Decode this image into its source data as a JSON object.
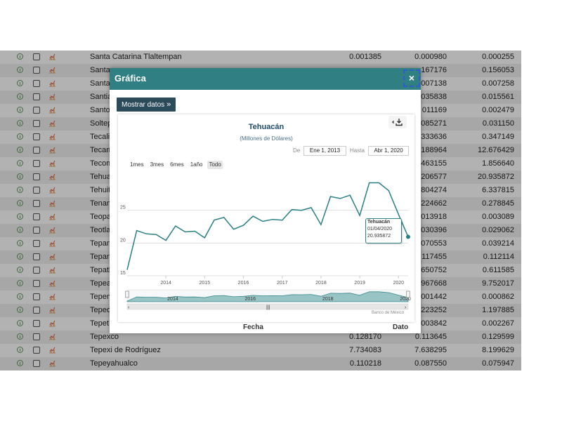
{
  "table": {
    "rows": [
      {
        "name": "Santa Catarina Tlaltempan",
        "v1": "0.001385",
        "v2": "0.000980",
        "v3": "0.000255"
      },
      {
        "name": "Santa",
        "v1": "",
        "v2": "167176",
        "v3": "0.156053"
      },
      {
        "name": "Santa",
        "v1": "",
        "v2": "007138",
        "v3": "0.007258"
      },
      {
        "name": "Santia",
        "v1": "",
        "v2": "035838",
        "v3": "0.015561"
      },
      {
        "name": "Santo",
        "v1": "",
        "v2": "011169",
        "v3": "0.002479"
      },
      {
        "name": "Soltep",
        "v1": "",
        "v2": "085271",
        "v3": "0.031150"
      },
      {
        "name": "Tecali",
        "v1": "",
        "v2": "333636",
        "v3": "0.347149"
      },
      {
        "name": "Tecam",
        "v1": "",
        "v2": "188964",
        "v3": "12.676429"
      },
      {
        "name": "Tecom",
        "v1": "",
        "v2": "463155",
        "v3": "1.856640"
      },
      {
        "name": "Tehua",
        "v1": "",
        "v2": "206577",
        "v3": "20.935872"
      },
      {
        "name": "Tehuit",
        "v1": "",
        "v2": "804274",
        "v3": "6.337815"
      },
      {
        "name": "Tenam",
        "v1": "",
        "v2": "224662",
        "v3": "0.278845"
      },
      {
        "name": "Teopa",
        "v1": "",
        "v2": "013918",
        "v3": "0.003089"
      },
      {
        "name": "Teotla",
        "v1": "",
        "v2": "030396",
        "v3": "0.029062"
      },
      {
        "name": "Tepan",
        "v1": "",
        "v2": "070553",
        "v3": "0.039214"
      },
      {
        "name": "Tepan",
        "v1": "",
        "v2": "117455",
        "v3": "0.112114"
      },
      {
        "name": "Tepatl",
        "v1": "",
        "v2": "650752",
        "v3": "0.611585"
      },
      {
        "name": "Tepea",
        "v1": "",
        "v2": "967668",
        "v3": "9.752017"
      },
      {
        "name": "Tepem",
        "v1": "",
        "v2": "001442",
        "v3": "0.000862"
      },
      {
        "name": "Tepeo",
        "v1": "",
        "v2": "223252",
        "v3": "1.197885"
      },
      {
        "name": "Tepet",
        "v1": "",
        "v2": "003842",
        "v3": "0.002267"
      },
      {
        "name": "Tepexco",
        "v1": "0.128170",
        "v2": "0.113645",
        "v3": "0.129599"
      },
      {
        "name": "Tepexi de Rodríguez",
        "v1": "7.734083",
        "v2": "7.638295",
        "v3": "8.199629"
      },
      {
        "name": "Tepeyahualco",
        "v1": "0.110218",
        "v2": "0.087550",
        "v3": "0.075947"
      }
    ]
  },
  "modal": {
    "title": "Gráfica",
    "close": "×",
    "show_data": "Mostrar datos",
    "show_data_chevron": "»"
  },
  "chart": {
    "range_from_label": "De",
    "range_from": "Ene 1, 2013",
    "range_to_label": "Hasta",
    "range_to": "Abr 1, 2020",
    "zoom_buttons": [
      "1mes",
      "3mes",
      "6mes",
      "1año",
      "Todo"
    ],
    "zoom_active": "Todo",
    "credits": "Banco de México",
    "tooltip": {
      "name": "Tehuacán",
      "date": "01/04/2020",
      "value": "20.935872"
    },
    "series_color": "#2a7f83",
    "below_labels": [
      "Fecha",
      "Dato"
    ]
  },
  "chart_data": {
    "type": "line",
    "title": "Tehuacán",
    "subtitle": "(Millones de Dólares)",
    "x_tick_labels": [
      "2014",
      "2015",
      "2016",
      "2017",
      "2018",
      "2019",
      "2020"
    ],
    "y_tick_labels": [
      "15",
      "20",
      "25"
    ],
    "ylim": [
      15,
      30
    ],
    "x": [
      "2013-01-01",
      "2013-04-01",
      "2013-07-01",
      "2013-10-01",
      "2014-01-01",
      "2014-04-01",
      "2014-07-01",
      "2014-10-01",
      "2015-01-01",
      "2015-04-01",
      "2015-07-01",
      "2015-10-01",
      "2016-01-01",
      "2016-04-01",
      "2016-07-01",
      "2016-10-01",
      "2017-01-01",
      "2017-04-01",
      "2017-07-01",
      "2017-10-01",
      "2018-01-01",
      "2018-04-01",
      "2018-07-01",
      "2018-10-01",
      "2019-01-01",
      "2019-04-01",
      "2019-07-01",
      "2019-10-01",
      "2020-01-01",
      "2020-04-01"
    ],
    "series": [
      {
        "name": "Tehuacán",
        "values": [
          15.9,
          21.9,
          21.4,
          21.3,
          20.4,
          22.6,
          21.7,
          21.8,
          20.8,
          23.5,
          23.9,
          22.1,
          22.7,
          24.1,
          23.3,
          23.6,
          23.5,
          25.1,
          25.0,
          25.4,
          22.8,
          27.1,
          26.8,
          27.3,
          24.2,
          29.2,
          29.2,
          28.0,
          24.4,
          20.94
        ]
      }
    ],
    "grid": true,
    "legend": "none"
  }
}
